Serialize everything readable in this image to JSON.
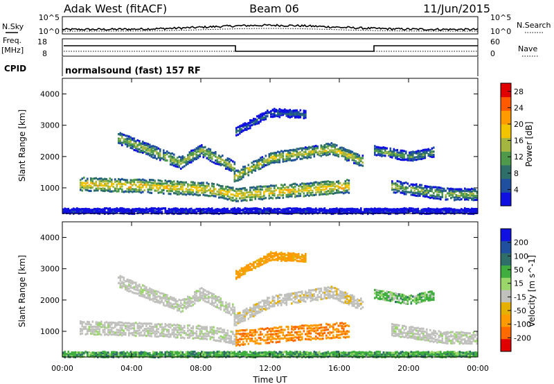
{
  "header": {
    "station": "Adak West (fitACF)",
    "beam": "Beam 06",
    "date": "11/Jun/2015"
  },
  "meta_panel": {
    "nsky_label": "N.Sky",
    "nsearch_label": "N.Search",
    "freq_label_1": "Freq.",
    "freq_label_2": "[MHz]",
    "nave_label": "Nave",
    "cpid_label": "CPID",
    "cpid_value": "normalsound (fast) 157 RF",
    "noise_ticks_left": [
      "10^5",
      "10^0"
    ],
    "noise_ticks_right": [
      "10^5",
      "10^0"
    ],
    "freq_ticks": [
      "18",
      "8"
    ],
    "nave_ticks": [
      "60",
      "0"
    ]
  },
  "colors": {
    "power_scale": [
      "#1010e0",
      "#1f4f9f",
      "#2e6f6a",
      "#4f9a4a",
      "#a4b640",
      "#f2c400",
      "#ff9a00",
      "#ff5a00",
      "#e00000"
    ],
    "velocity_scale": [
      "#1010e0",
      "#1f4f9f",
      "#2e6f6a",
      "#3fae3f",
      "#9bd66b",
      "#c0c0bc",
      "#e6b000",
      "#ff9a00",
      "#ff6a00",
      "#e00000"
    ]
  },
  "chart_data": [
    {
      "type": "heatmap",
      "panel": "power",
      "ylabel": "Slant Range [km]",
      "ylim": [
        180,
        4500
      ],
      "yticks": [
        "1000",
        "2000",
        "3000",
        "4000"
      ],
      "xlim": [
        "00:00",
        "24:00"
      ],
      "colorbar_label": "Power [dB]",
      "colorbar_ticks": [
        "4",
        "8",
        "12",
        "16",
        "20",
        "24",
        "28"
      ],
      "colorbar_range": [
        0,
        30
      ],
      "bands": [
        {
          "t": [
            3.2,
            6.8,
            8.0,
            9.9
          ],
          "r": [
            2600,
            1800,
            2200,
            1650
          ],
          "w": 170,
          "p": 16
        },
        {
          "t": [
            9.9,
            12.0,
            15.5,
            17.3
          ],
          "r": [
            1350,
            1950,
            2250,
            1850
          ],
          "w": 160,
          "p": 18
        },
        {
          "t": [
            10.0,
            12.0,
            14.0
          ],
          "r": [
            2800,
            3400,
            3350
          ],
          "w": 110,
          "p": 9
        },
        {
          "t": [
            1.0,
            5.0,
            8.5,
            10.0,
            16.5
          ],
          "r": [
            1120,
            1050,
            950,
            780,
            1050
          ],
          "w": 190,
          "p": 20
        },
        {
          "t": [
            18.0,
            20.0,
            21.5
          ],
          "r": [
            2200,
            2000,
            2150
          ],
          "w": 130,
          "p": 14
        },
        {
          "t": [
            19.0,
            22.0,
            24.0
          ],
          "r": [
            1050,
            800,
            780
          ],
          "w": 170,
          "p": 15
        },
        {
          "t": [
            0.0,
            24.0
          ],
          "r": [
            260,
            260
          ],
          "w": 70,
          "p": 4
        }
      ]
    },
    {
      "type": "heatmap",
      "panel": "velocity",
      "ylabel": "Slant Range [km]",
      "ylim": [
        180,
        4500
      ],
      "yticks": [
        "1000",
        "2000",
        "3000",
        "4000"
      ],
      "xlim": [
        "00:00",
        "24:00"
      ],
      "xlabel": "Time UT",
      "xticks": [
        "00:00",
        "04:00",
        "08:00",
        "12:00",
        "16:00",
        "20:00",
        "00:00"
      ],
      "colorbar_label": "Velocity [m s^-1]",
      "colorbar_ticks": [
        "200",
        "100",
        "50",
        "15",
        "-15",
        "-50",
        "-100",
        "-200"
      ],
      "colorbar_range": [
        -250,
        250
      ],
      "bands": [
        {
          "t": [
            3.2,
            6.8,
            8.0,
            9.9
          ],
          "r": [
            2600,
            1800,
            2200,
            1650
          ],
          "w": 170,
          "v": 0
        },
        {
          "t": [
            9.9,
            12.0,
            15.5,
            17.3
          ],
          "r": [
            1350,
            1950,
            2250,
            1850
          ],
          "w": 160,
          "v": -5
        },
        {
          "t": [
            10.0,
            12.0,
            14.0
          ],
          "r": [
            2800,
            3400,
            3350
          ],
          "w": 110,
          "v": -40
        },
        {
          "t": [
            1.0,
            5.0,
            8.5,
            10.0
          ],
          "r": [
            1120,
            1050,
            950,
            780
          ],
          "w": 190,
          "v": 0
        },
        {
          "t": [
            10.0,
            12.5,
            16.5
          ],
          "r": [
            780,
            900,
            1050
          ],
          "w": 220,
          "v": -70
        },
        {
          "t": [
            18.0,
            20.0,
            21.5
          ],
          "r": [
            2200,
            2000,
            2150
          ],
          "w": 130,
          "v": 20
        },
        {
          "t": [
            19.0,
            22.0,
            24.0
          ],
          "r": [
            1050,
            800,
            780
          ],
          "w": 170,
          "v": 0
        },
        {
          "t": [
            0.0,
            24.0
          ],
          "r": [
            260,
            260
          ],
          "w": 70,
          "v": 25
        }
      ]
    }
  ]
}
